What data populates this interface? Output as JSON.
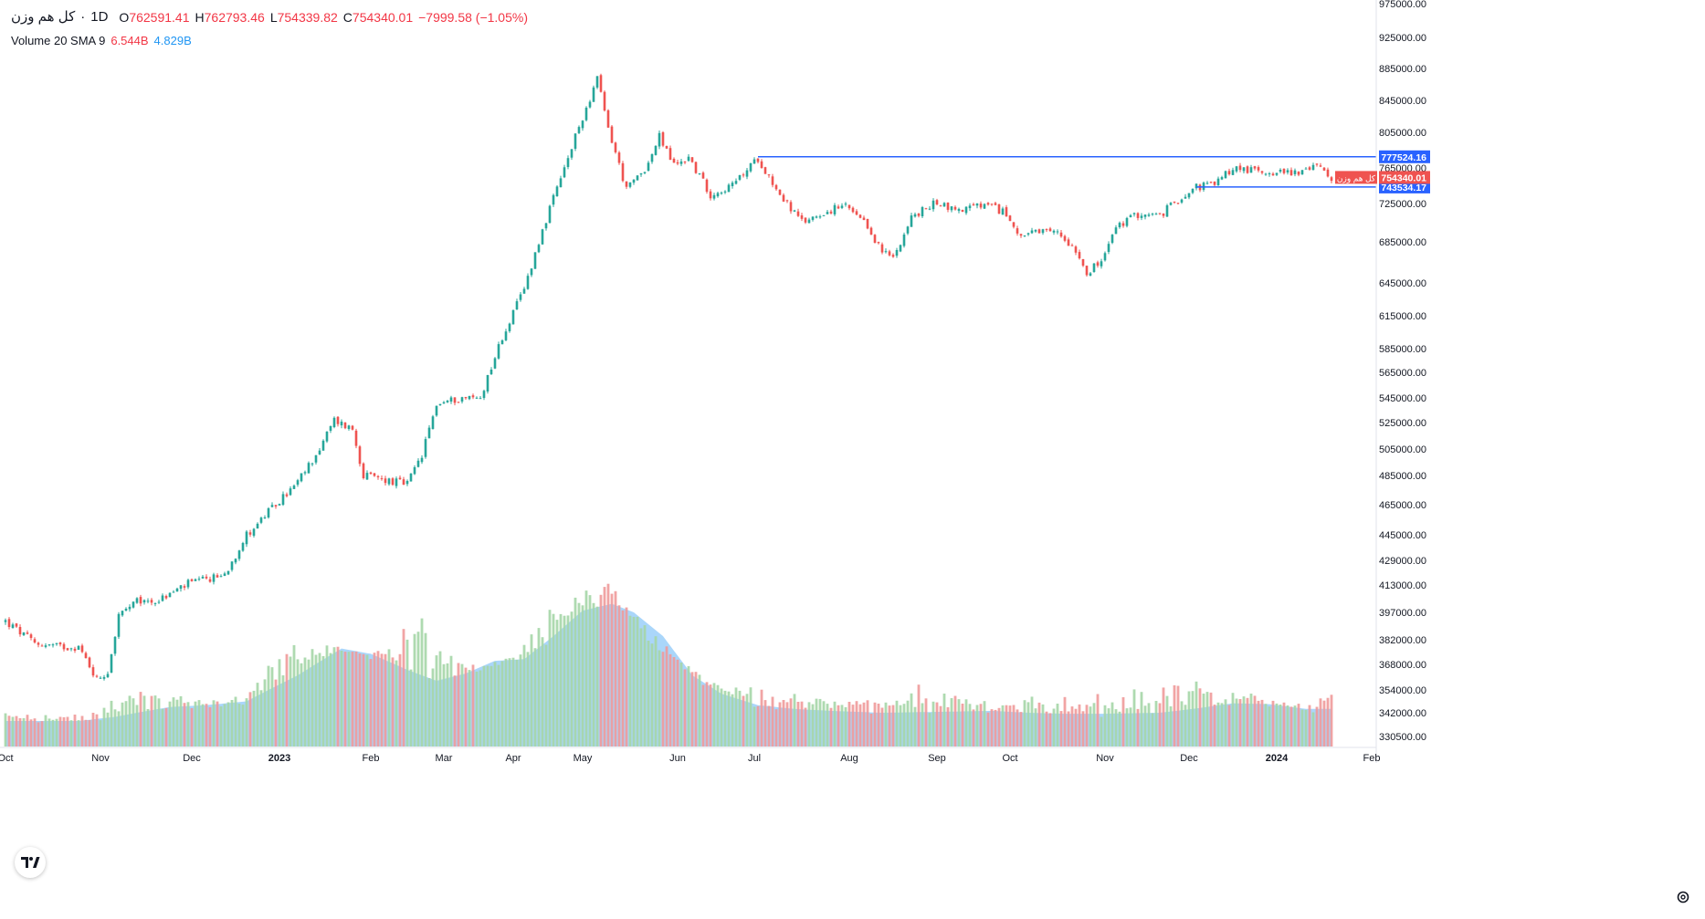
{
  "header": {
    "symbol": "کل هم وزن",
    "interval": "1D",
    "ohlc": {
      "open_label": "O",
      "open": "762591.41",
      "high_label": "H",
      "high": "762793.46",
      "low_label": "L",
      "low": "754339.82",
      "close_label": "C",
      "close": "754340.01",
      "change": "−7999.58 (−1.05%)"
    },
    "volume_label": "Volume 20 SMA 9",
    "volume_value": "6.544B",
    "volume_sma_value": "4.829B"
  },
  "colors": {
    "up": "#26a69a",
    "down": "#ef5350",
    "hline": "#2962ff",
    "vol_up": "#a5d6a7",
    "vol_down": "#ef9a9a",
    "vol_sma_fill": "#64b5f6",
    "axis_text": "#131722",
    "price_tag": "#ef5350"
  },
  "icons": {
    "logo": "tradingview-logo-icon",
    "settings": "gear-icon"
  },
  "chart_data": {
    "type": "candlestick",
    "y_axis": {
      "ticks": [
        330500,
        342000,
        354000,
        368000,
        382000,
        397000,
        413000,
        429000,
        445000,
        465000,
        485000,
        505000,
        525000,
        545000,
        565000,
        585000,
        615000,
        645000,
        685000,
        725000,
        765000,
        805000,
        845000,
        885000,
        925000,
        975000
      ],
      "range": [
        320000,
        980000
      ],
      "scale": "log"
    },
    "x_axis": {
      "labels": [
        "Oct",
        "Nov",
        "Dec",
        "2023",
        "Feb",
        "Mar",
        "Apr",
        "May",
        "Jun",
        "Jul",
        "Aug",
        "Sep",
        "Oct",
        "Nov",
        "Dec",
        "2024",
        "Feb"
      ],
      "bold_labels": [
        "2023",
        "2024"
      ]
    },
    "price_markers": [
      {
        "value": 777524.16,
        "label": "777524.16",
        "kind": "hline",
        "from_index": 206
      },
      {
        "value": 743534.17,
        "label": "743534.17",
        "kind": "hline",
        "from_index": 326
      },
      {
        "value": 754340.01,
        "label": "754340.01",
        "kind": "last",
        "name": "کل هم وزن"
      }
    ],
    "close_anchors": [
      [
        0,
        392000
      ],
      [
        8,
        380000
      ],
      [
        15,
        378000
      ],
      [
        20,
        378000
      ],
      [
        25,
        360000
      ],
      [
        28,
        364000
      ],
      [
        31,
        395000
      ],
      [
        36,
        403000
      ],
      [
        42,
        404000
      ],
      [
        50,
        414000
      ],
      [
        56,
        417000
      ],
      [
        60,
        420000
      ],
      [
        66,
        445000
      ],
      [
        74,
        465000
      ],
      [
        80,
        480000
      ],
      [
        86,
        505000
      ],
      [
        90,
        527000
      ],
      [
        95,
        520000
      ],
      [
        98,
        485000
      ],
      [
        104,
        482000
      ],
      [
        110,
        479000
      ],
      [
        114,
        500000
      ],
      [
        118,
        540000
      ],
      [
        125,
        545000
      ],
      [
        130,
        545000
      ],
      [
        136,
        595000
      ],
      [
        142,
        640000
      ],
      [
        148,
        708000
      ],
      [
        154,
        775000
      ],
      [
        162,
        872000
      ],
      [
        165,
        810000
      ],
      [
        170,
        740000
      ],
      [
        176,
        770000
      ],
      [
        179,
        800000
      ],
      [
        183,
        768000
      ],
      [
        187,
        777000
      ],
      [
        193,
        735000
      ],
      [
        199,
        745000
      ],
      [
        206,
        776000
      ],
      [
        212,
        735000
      ],
      [
        218,
        705000
      ],
      [
        224,
        716000
      ],
      [
        230,
        722000
      ],
      [
        236,
        700000
      ],
      [
        240,
        675000
      ],
      [
        243,
        670000
      ],
      [
        248,
        710000
      ],
      [
        255,
        727000
      ],
      [
        260,
        718000
      ],
      [
        268,
        723000
      ],
      [
        273,
        717000
      ],
      [
        278,
        692000
      ],
      [
        283,
        694000
      ],
      [
        288,
        695000
      ],
      [
        293,
        678000
      ],
      [
        296,
        656000
      ],
      [
        300,
        665000
      ],
      [
        304,
        700000
      ],
      [
        310,
        714000
      ],
      [
        316,
        712000
      ],
      [
        320,
        726000
      ],
      [
        325,
        743000
      ],
      [
        331,
        747000
      ],
      [
        336,
        765000
      ],
      [
        342,
        762000
      ],
      [
        350,
        760000
      ],
      [
        356,
        762000
      ],
      [
        360,
        768000
      ],
      [
        363,
        754340
      ]
    ],
    "volume_sma_anchors": [
      [
        0,
        338000
      ],
      [
        20,
        338000
      ],
      [
        30,
        340000
      ],
      [
        45,
        345000
      ],
      [
        55,
        346000
      ],
      [
        66,
        348000
      ],
      [
        80,
        362000
      ],
      [
        92,
        377000
      ],
      [
        100,
        374000
      ],
      [
        110,
        365000
      ],
      [
        118,
        359000
      ],
      [
        126,
        363000
      ],
      [
        134,
        370000
      ],
      [
        142,
        371000
      ],
      [
        150,
        384000
      ],
      [
        158,
        398000
      ],
      [
        166,
        402000
      ],
      [
        172,
        397000
      ],
      [
        180,
        384000
      ],
      [
        188,
        362000
      ],
      [
        196,
        352000
      ],
      [
        206,
        346000
      ],
      [
        216,
        344000
      ],
      [
        226,
        343000
      ],
      [
        240,
        342000
      ],
      [
        256,
        342500
      ],
      [
        270,
        343000
      ],
      [
        280,
        342000
      ],
      [
        290,
        341500
      ],
      [
        300,
        341500
      ],
      [
        316,
        342000
      ],
      [
        325,
        344000
      ],
      [
        336,
        347000
      ],
      [
        346,
        346500
      ],
      [
        356,
        344000
      ],
      [
        363,
        344000
      ]
    ],
    "volume_peaks": [
      [
        0,
        343000
      ],
      [
        22,
        339000
      ],
      [
        33,
        360000
      ],
      [
        55,
        347000
      ],
      [
        66,
        352000
      ],
      [
        74,
        378000
      ],
      [
        82,
        384000
      ],
      [
        90,
        378000
      ],
      [
        100,
        370000
      ],
      [
        116,
        412000
      ],
      [
        126,
        367000
      ],
      [
        136,
        367000
      ],
      [
        146,
        395000
      ],
      [
        154,
        406000
      ],
      [
        162,
        420000
      ],
      [
        166,
        416000
      ],
      [
        174,
        381000
      ],
      [
        182,
        370000
      ],
      [
        196,
        359000
      ],
      [
        214,
        352000
      ],
      [
        240,
        348000
      ],
      [
        250,
        360000
      ],
      [
        270,
        346000
      ],
      [
        278,
        350000
      ],
      [
        296,
        351000
      ],
      [
        326,
        361000
      ],
      [
        336,
        355000
      ],
      [
        352,
        344000
      ],
      [
        363,
        351000
      ]
    ]
  }
}
